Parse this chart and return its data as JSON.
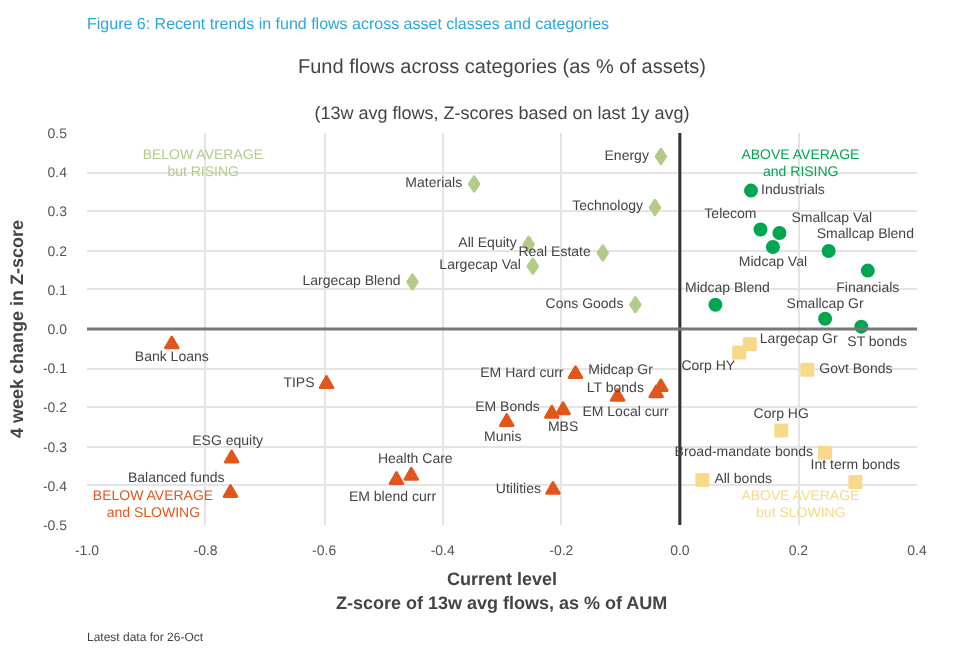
{
  "chart_data": {
    "type": "scatter",
    "title": "Fund flows across categories (as % of assets)",
    "subtitle": "(13w avg flows, Z-scores based on last 1y avg)",
    "xlabel": "Current level\nZ-score of 13w avg flows, as % of AUM",
    "ylabel": "4 week change in Z-score",
    "xlim": [
      -1.0,
      0.4
    ],
    "ylim": [
      -0.5,
      0.5
    ],
    "xticks": [
      {
        "value": -1.0,
        "label": "-1.0"
      },
      -0.8,
      -0.6,
      -0.4,
      -0.2,
      {
        "value": 0,
        "label": "0.0"
      },
      0.2,
      0.4
    ],
    "yticks": [
      -0.5,
      -0.4,
      -0.3,
      -0.2,
      -0.1,
      {
        "value": 0,
        "label": "0.0"
      },
      0.1,
      0.2,
      0.3,
      0.4,
      0.5
    ],
    "grid": true,
    "ref_lines": [
      {
        "axis": "x",
        "value": 0,
        "color": "#333333"
      },
      {
        "axis": "y",
        "value": 0,
        "color": "#777777"
      }
    ],
    "series": [
      {
        "name": "BELOW AVERAGE\nbut RISING",
        "color": "#b3cb8a",
        "marker": "diamond",
        "x": [
          -0.032,
          -0.347,
          -0.042,
          -0.255,
          -0.13,
          -0.248,
          -0.451,
          -0.075
        ],
        "values": [
          0.44,
          0.37,
          0.31,
          0.216,
          0.194,
          0.16,
          0.12,
          0.062
        ]
      },
      {
        "name": "ABOVE AVERAGE\nand RISING",
        "color": "#00a650",
        "marker": "circle",
        "x": [
          0.12,
          0.136,
          0.168,
          0.157,
          0.251,
          0.317,
          0.06,
          0.245,
          0.306
        ],
        "values": [
          0.353,
          0.254,
          0.245,
          0.209,
          0.199,
          0.149,
          0.062,
          0.026,
          0.006
        ]
      },
      {
        "name": "ABOVE AVERAGE\nbut SLOWING",
        "color": "#f8d98a",
        "marker": "square",
        "x": [
          0.118,
          0.1,
          0.215,
          0.171,
          0.245,
          0.038,
          0.296
        ],
        "values": [
          -0.039,
          -0.06,
          -0.104,
          -0.259,
          -0.316,
          -0.385,
          -0.39
        ]
      },
      {
        "name": "BELOW AVERAGE\nand SLOWING",
        "color": "#e0561b",
        "marker": "triangle",
        "x": [
          -0.857,
          -0.596,
          -0.756,
          -0.758,
          -0.478,
          -0.453,
          -0.176,
          -0.032,
          -0.04,
          -0.105,
          -0.216,
          -0.197,
          -0.292,
          -0.214
        ],
        "values": [
          -0.039,
          -0.14,
          -0.33,
          -0.418,
          -0.385,
          -0.374,
          -0.115,
          -0.148,
          -0.164,
          -0.173,
          -0.216,
          -0.207,
          -0.237,
          -0.41
        ]
      }
    ],
    "annotations": [
      "Figure 6: Recent trends in fund flows across asset classes and categories",
      "Latest data for 26-Oct",
      {
        "text": "Energy",
        "x": -0.032,
        "y": 0.44
      },
      {
        "text": "Materials",
        "x": -0.347,
        "y": 0.37
      },
      {
        "text": "Technology",
        "x": -0.042,
        "y": 0.31
      },
      {
        "text": "All Equity",
        "x": -0.255,
        "y": 0.216
      },
      {
        "text": "Real Estate",
        "x": -0.13,
        "y": 0.194
      },
      {
        "text": "Largecap Val",
        "x": -0.248,
        "y": 0.16
      },
      {
        "text": "Largecap Blend",
        "x": -0.451,
        "y": 0.12
      },
      {
        "text": "Cons Goods",
        "x": -0.075,
        "y": 0.062
      },
      {
        "text": "Industrials",
        "x": 0.12,
        "y": 0.353
      },
      {
        "text": "Telecom",
        "x": 0.136,
        "y": 0.254
      },
      {
        "text": "Smallcap Val",
        "x": 0.168,
        "y": 0.245
      },
      {
        "text": "Midcap Val",
        "x": 0.157,
        "y": 0.209
      },
      {
        "text": "Smallcap Blend",
        "x": 0.251,
        "y": 0.199
      },
      {
        "text": "Financials",
        "x": 0.317,
        "y": 0.149
      },
      {
        "text": "Midcap Blend",
        "x": 0.06,
        "y": 0.062
      },
      {
        "text": "Smallcap Gr",
        "x": 0.245,
        "y": 0.026
      },
      {
        "text": "ST bonds",
        "x": 0.306,
        "y": 0.006
      },
      {
        "text": "Largecap Gr",
        "x": 0.118,
        "y": -0.039
      },
      {
        "text": "Corp HY",
        "x": 0.1,
        "y": -0.06
      },
      {
        "text": "Govt Bonds",
        "x": 0.215,
        "y": -0.104
      },
      {
        "text": "Corp HG",
        "x": 0.171,
        "y": -0.259
      },
      {
        "text": "Broad-mandate bonds",
        "x": 0.245,
        "y": -0.316
      },
      {
        "text": "All bonds",
        "x": 0.038,
        "y": -0.385
      },
      {
        "text": "Int term bonds",
        "x": 0.296,
        "y": -0.39
      },
      {
        "text": "Bank Loans",
        "x": -0.857,
        "y": -0.039
      },
      {
        "text": "TIPS",
        "x": -0.596,
        "y": -0.14
      },
      {
        "text": "ESG equity",
        "x": -0.756,
        "y": -0.33
      },
      {
        "text": "Balanced funds",
        "x": -0.758,
        "y": -0.418
      },
      {
        "text": "EM blend curr",
        "x": -0.478,
        "y": -0.385
      },
      {
        "text": "Health Care",
        "x": -0.453,
        "y": -0.374
      },
      {
        "text": "EM Hard curr",
        "x": -0.176,
        "y": -0.115
      },
      {
        "text": "Midcap Gr",
        "x": -0.032,
        "y": -0.148
      },
      {
        "text": "LT bonds",
        "x": -0.04,
        "y": -0.164
      },
      {
        "text": "EM Local curr",
        "x": -0.105,
        "y": -0.173
      },
      {
        "text": "EM Bonds",
        "x": -0.216,
        "y": -0.216
      },
      {
        "text": "MBS",
        "x": -0.197,
        "y": -0.207
      },
      {
        "text": "Munis",
        "x": -0.292,
        "y": -0.237
      },
      {
        "text": "Utilities",
        "x": -0.214,
        "y": -0.41
      }
    ]
  }
}
